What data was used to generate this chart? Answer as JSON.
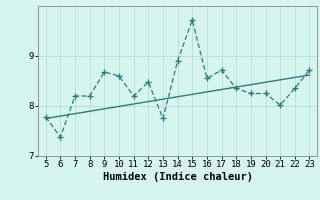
{
  "x": [
    5,
    6,
    7,
    8,
    9,
    10,
    11,
    12,
    13,
    14,
    15,
    16,
    17,
    18,
    19,
    20,
    21,
    22,
    23
  ],
  "y": [
    7.78,
    7.38,
    8.2,
    8.2,
    8.68,
    8.6,
    8.2,
    8.48,
    7.75,
    8.9,
    9.72,
    8.55,
    8.72,
    8.35,
    8.25,
    8.25,
    8.02,
    8.35,
    8.72
  ],
  "trend_x": [
    5,
    23
  ],
  "trend_y": [
    7.75,
    8.62
  ],
  "xlabel": "Humidex (Indice chaleur)",
  "xlim": [
    4.5,
    23.5
  ],
  "ylim": [
    7.0,
    10.0
  ],
  "yticks": [
    7,
    8,
    9
  ],
  "xticks": [
    5,
    6,
    7,
    8,
    9,
    10,
    11,
    12,
    13,
    14,
    15,
    16,
    17,
    18,
    19,
    20,
    21,
    22,
    23
  ],
  "line_color": "#2a7f72",
  "bg_color": "#d6f5ef",
  "grid_color": "#b8ddd7",
  "tick_fontsize": 6.5,
  "xlabel_fontsize": 7.5
}
